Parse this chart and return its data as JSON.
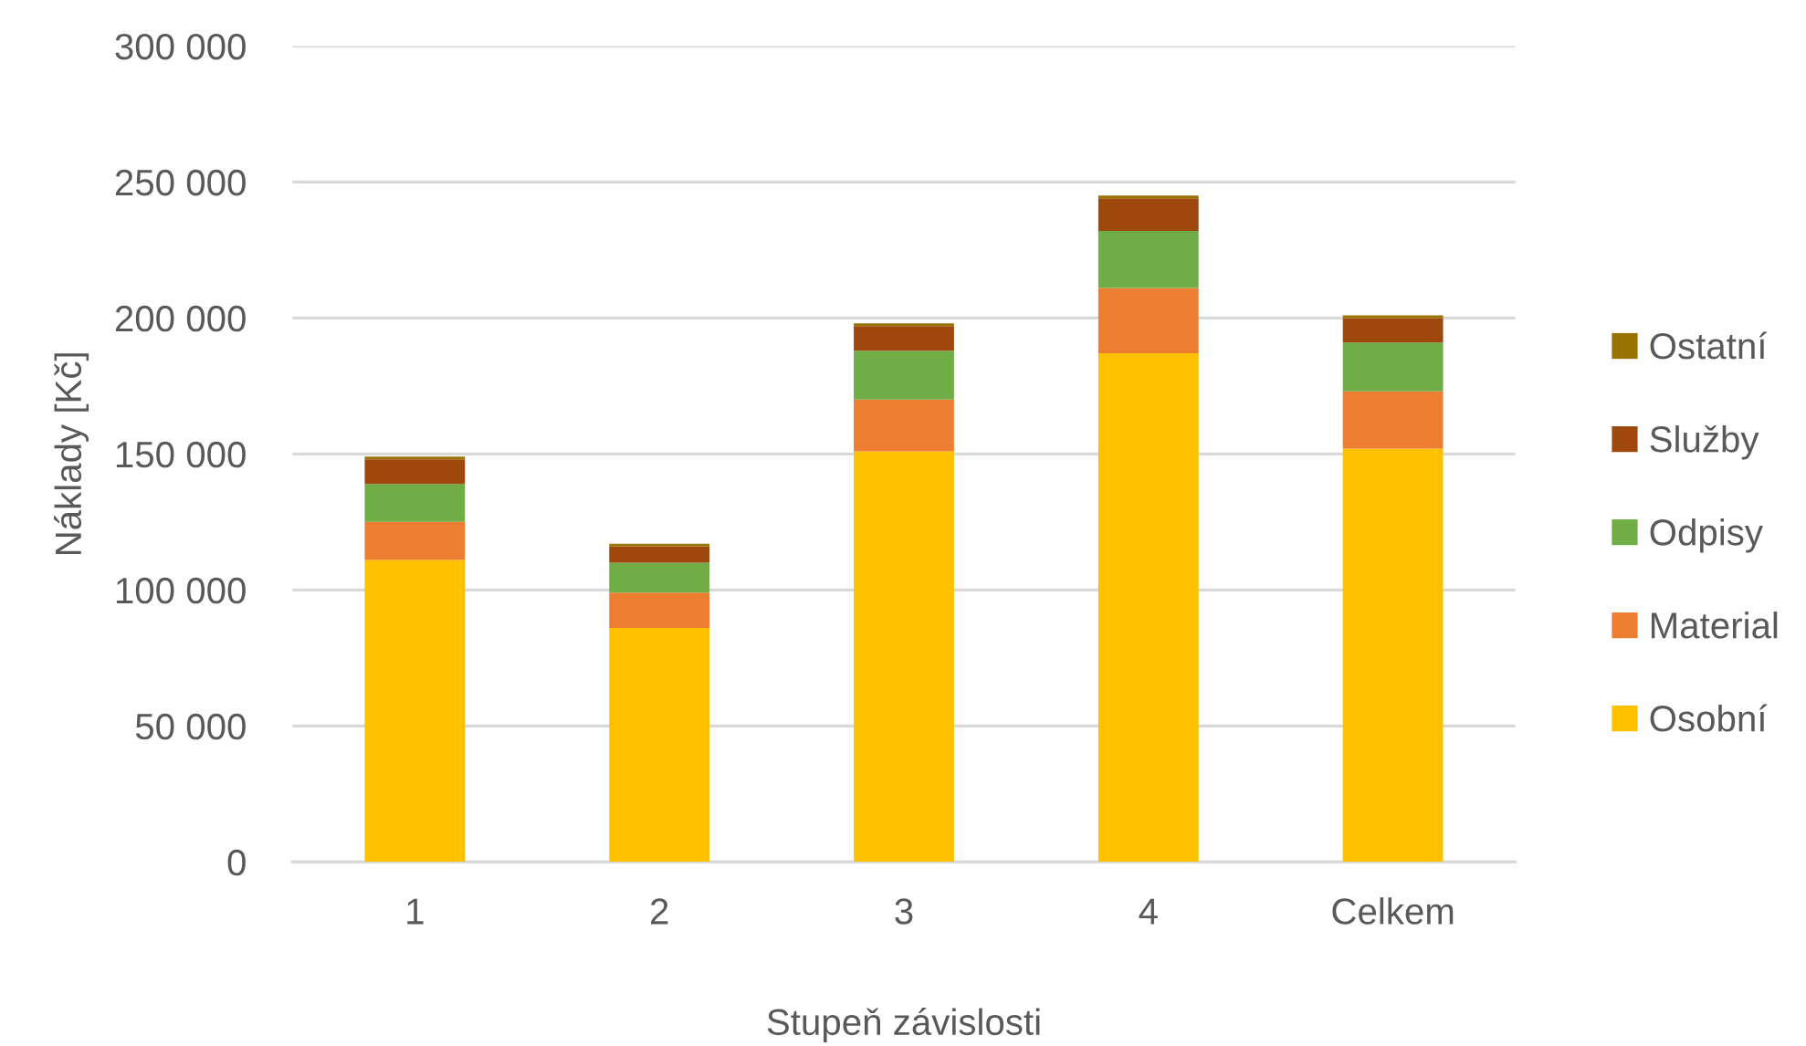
{
  "chart_data": {
    "type": "bar",
    "stacked": true,
    "xlabel": "Stupeň závislosti",
    "ylabel": "Náklady [Kč]",
    "categories": [
      "1",
      "2",
      "3",
      "4",
      "Celkem"
    ],
    "series": [
      {
        "name": "Osobní",
        "color": "#ffc000",
        "values": [
          111000,
          86000,
          151000,
          187000,
          152000
        ]
      },
      {
        "name": "Material",
        "color": "#ed7d31",
        "values": [
          14000,
          13000,
          19000,
          24000,
          21000
        ]
      },
      {
        "name": "Odpisy",
        "color": "#70ad47",
        "values": [
          14000,
          11000,
          18000,
          21000,
          18000
        ]
      },
      {
        "name": "Služby",
        "color": "#9e480e",
        "values": [
          9000,
          6000,
          9000,
          12000,
          9000
        ]
      },
      {
        "name": "Ostatní",
        "color": "#997300",
        "values": [
          1000,
          1000,
          1000,
          1000,
          1000
        ]
      }
    ],
    "ylim": [
      0,
      300000
    ],
    "yticks": [
      0,
      {
        "value": 50000,
        "label": "50 000"
      },
      {
        "value": 100000,
        "label": "100 000"
      },
      {
        "value": 150000,
        "label": "150 000"
      },
      {
        "value": 200000,
        "label": "200 000"
      },
      {
        "value": 250000,
        "label": "250 000"
      },
      {
        "value": 300000,
        "label": "300 000"
      }
    ],
    "grid": "y",
    "legend": "right"
  }
}
